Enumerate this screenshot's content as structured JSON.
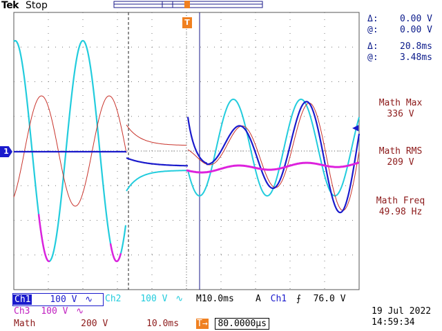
{
  "header": {
    "brand": "Tek",
    "acquisition_state": "Stop"
  },
  "cursor_readout": {
    "voltage_delta_symbol": "Δ:",
    "voltage_delta": "0.00 V",
    "voltage_at_symbol": "@:",
    "voltage_at": "0.00 V",
    "time_delta_symbol": "Δ:",
    "time_delta": "20.8ms",
    "time_at_symbol": "@:",
    "time_at": "3.48ms"
  },
  "measurements": [
    {
      "name": "Math Max",
      "value": "336 V"
    },
    {
      "name": "Math RMS",
      "value": "209 V"
    },
    {
      "name": "Math Freq",
      "value": "49.98 Hz"
    }
  ],
  "channel_marker": "1",
  "trigger_marker": "T",
  "status_bar": {
    "ch1_label": "Ch1",
    "ch1_scale": "100 V",
    "ch1_coupling": "∿",
    "ch2_label": "Ch2",
    "ch2_scale": "100 V",
    "ch2_coupling": "∿",
    "ch3_label": "Ch3",
    "ch3_scale": "100 V",
    "ch3_coupling": "∿",
    "timebase_prefix": "M",
    "timebase": "10.0ms",
    "trigger_mode": "A",
    "trigger_source": "Ch1",
    "trigger_slope": "⨍",
    "trigger_level": "76.0 V",
    "math_label": "Math",
    "math_scale": "200 V",
    "math_time": "10.0ms",
    "trigger_position_icon": "T→",
    "trigger_position": "80.0000µs",
    "date": "19 Jul  2022",
    "time": "14:59:34"
  },
  "colors": {
    "ch1": "#1a1acc",
    "ch2": "#22ccdd",
    "ch3": "#dd22dd",
    "math": "#c8322a",
    "graticule": "#555555",
    "orange": "#f08020"
  }
}
